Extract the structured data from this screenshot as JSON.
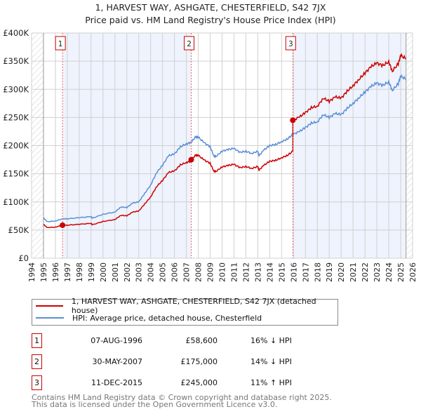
{
  "chart_data": {
    "type": "line",
    "title": "1, HARVEST WAY, ASHGATE, CHESTERFIELD, S42 7JX",
    "subtitle": "Price paid vs. HM Land Registry's House Price Index (HPI)",
    "xlim": [
      1994,
      2026
    ],
    "ylim": [
      0,
      400000
    ],
    "y_ticks": [
      {
        "v": 0,
        "label": "£0"
      },
      {
        "v": 50000,
        "label": "£50K"
      },
      {
        "v": 100000,
        "label": "£100K"
      },
      {
        "v": 150000,
        "label": "£150K"
      },
      {
        "v": 200000,
        "label": "£200K"
      },
      {
        "v": 250000,
        "label": "£250K"
      },
      {
        "v": 300000,
        "label": "£300K"
      },
      {
        "v": 350000,
        "label": "£350K"
      },
      {
        "v": 400000,
        "label": "£400K"
      }
    ],
    "x_ticks": [
      "1994",
      "1995",
      "1996",
      "1997",
      "1998",
      "1999",
      "2000",
      "2001",
      "2002",
      "2003",
      "2004",
      "2005",
      "2006",
      "2007",
      "2008",
      "2009",
      "2010",
      "2011",
      "2012",
      "2013",
      "2014",
      "2015",
      "2016",
      "2017",
      "2018",
      "2019",
      "2020",
      "2021",
      "2022",
      "2023",
      "2024",
      "2025",
      "2026"
    ],
    "grid": true,
    "data_range": [
      1995,
      2025.45
    ],
    "series": [
      {
        "name": "HPI: Average price, detached house, Chesterfield",
        "color": "#5b8fd6",
        "x": [
          1995,
          1995.3,
          1996,
          1996.6,
          1997,
          1998,
          1999,
          1999.1,
          2000,
          2001,
          2001.5,
          2002,
          2002.5,
          2003,
          2003.5,
          2004,
          2004.5,
          2005,
          2005.5,
          2006,
          2006.5,
          2007,
          2007.4,
          2007.8,
          2008,
          2008.5,
          2009,
          2009.3,
          2009.5,
          2010,
          2010.5,
          2011,
          2011.5,
          2012,
          2012.5,
          2013,
          2013.1,
          2013.5,
          2014,
          2014.5,
          2015,
          2015.5,
          2015.95,
          2016.5,
          2017,
          2017.5,
          2018,
          2018.5,
          2019,
          2019.5,
          2020,
          2020.5,
          2021,
          2021.5,
          2022,
          2022.5,
          2023,
          2023.5,
          2024,
          2024.3,
          2024.8,
          2025,
          2025.45
        ],
        "y": [
          72000,
          65000,
          66000,
          70000,
          70000,
          72000,
          74000,
          71000,
          78000,
          82000,
          91000,
          90000,
          98000,
          100000,
          115000,
          130000,
          152000,
          165000,
          182000,
          185000,
          198000,
          203000,
          206000,
          216000,
          215000,
          205000,
          198000,
          182000,
          181000,
          190000,
          193000,
          195000,
          188000,
          190000,
          186000,
          190000,
          182000,
          192000,
          200000,
          202000,
          207000,
          212000,
          220000,
          225000,
          232000,
          240000,
          242000,
          255000,
          250000,
          257000,
          255000,
          266000,
          275000,
          285000,
          295000,
          305000,
          311000,
          307000,
          313000,
          298000,
          310000,
          323000,
          318000
        ]
      },
      {
        "name": "1, HARVEST WAY, ASHGATE, CHESTERFIELD, S42 7JX (detached house)",
        "color": "#cc0000",
        "derived_from_hpi_indexed_to_sales": true
      }
    ],
    "sales": [
      {
        "n": "1",
        "x": 1996.6,
        "date": "07-AUG-1996",
        "price": 58600,
        "price_label": "£58,600",
        "hpi": "16% ↓ HPI"
      },
      {
        "n": "2",
        "x": 2007.41,
        "date": "30-MAY-2007",
        "price": 175000,
        "price_label": "£175,000",
        "hpi": "14% ↓ HPI"
      },
      {
        "n": "3",
        "x": 2015.94,
        "date": "11-DEC-2015",
        "price": 245000,
        "price_label": "£245,000",
        "hpi": "11% ↑ HPI"
      }
    ]
  },
  "legend": {
    "property": "1, HARVEST WAY, ASHGATE, CHESTERFIELD, S42 7JX (detached house)",
    "hpi": "HPI: Average price, detached house, Chesterfield"
  },
  "footer": {
    "line1": "Contains HM Land Registry data © Crown copyright and database right 2025.",
    "line2": "This data is licensed under the Open Government Licence v3.0."
  }
}
